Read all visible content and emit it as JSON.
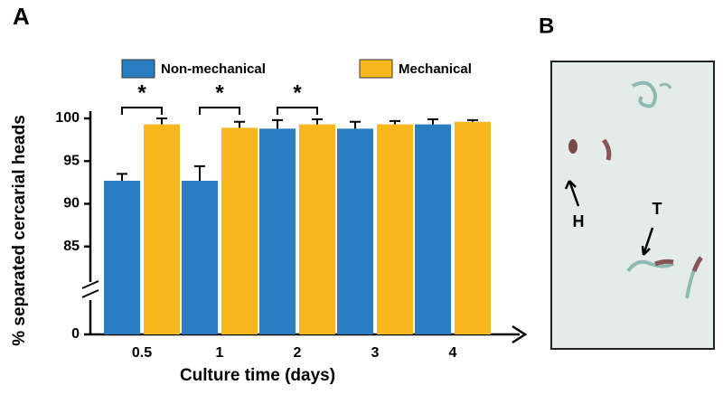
{
  "chart_data": {
    "type": "bar",
    "panel_labels": [
      "A",
      "B"
    ],
    "xlabel": "Culture time (days)",
    "ylabel": "% separated cercarial heads",
    "categories": [
      "0.5",
      "1",
      "2",
      "3",
      "4"
    ],
    "series": [
      {
        "name": "Non-mechanical",
        "color": "#2a7dc0",
        "values": [
          92.7,
          92.7,
          98.8,
          98.8,
          99.3
        ],
        "errors": [
          0.8,
          1.7,
          1.0,
          0.8,
          0.6
        ]
      },
      {
        "name": "Mechanical",
        "color": "#f8b81d",
        "values": [
          99.3,
          98.9,
          99.3,
          99.3,
          99.6
        ],
        "errors": [
          0.7,
          0.7,
          0.6,
          0.4,
          0.2
        ]
      }
    ],
    "significance": [
      "*",
      "*",
      "*",
      null,
      null
    ],
    "ylim": [
      0,
      100
    ],
    "axis_break": [
      0,
      80
    ],
    "yticks": [
      0,
      85,
      90,
      95,
      100
    ],
    "image_labels": [
      "H",
      "T"
    ]
  }
}
